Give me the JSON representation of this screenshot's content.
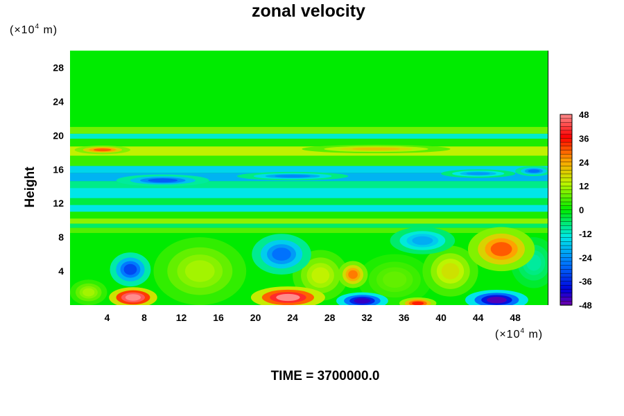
{
  "chart_data": {
    "type": "heatmap",
    "title": "zonal velocity",
    "ylabel": "Height",
    "x_unit": "(×10",
    "x_unit_exp": "4",
    "x_unit_tail": " m)",
    "y_unit": "(×10",
    "y_unit_exp": "4",
    "y_unit_tail": " m)",
    "xlim": [
      0,
      51.5
    ],
    "ylim": [
      0,
      30
    ],
    "xticks": [
      "4",
      "8",
      "12",
      "16",
      "20",
      "24",
      "28",
      "32",
      "36",
      "40",
      "44",
      "48"
    ],
    "xtick_values": [
      4,
      8,
      12,
      16,
      20,
      24,
      28,
      32,
      36,
      40,
      44,
      48
    ],
    "yticks": [
      "4",
      "8",
      "12",
      "16",
      "20",
      "24",
      "28"
    ],
    "ytick_values": [
      4,
      8,
      12,
      16,
      20,
      24,
      28
    ],
    "colorbar": {
      "range": [
        -48,
        48
      ],
      "tick_labels": [
        "48",
        "36",
        "24",
        "12",
        "0",
        "-12",
        "-24",
        "-36",
        "-48"
      ],
      "tick_values": [
        48,
        36,
        24,
        12,
        0,
        -12,
        -24,
        -36,
        -48
      ]
    },
    "features": [
      {
        "x": 6.8,
        "y": 0.9,
        "value": 46
      },
      {
        "x": 6.5,
        "y": 4.2,
        "value": -28
      },
      {
        "x": 23.5,
        "y": 0.8,
        "value": 42
      },
      {
        "x": 22.5,
        "y": 6.2,
        "value": -24
      },
      {
        "x": 31.5,
        "y": 0.6,
        "value": -38
      },
      {
        "x": 30.5,
        "y": 3.6,
        "value": 24
      },
      {
        "x": 37.5,
        "y": 0.3,
        "value": 30
      },
      {
        "x": 46.0,
        "y": 0.6,
        "value": -40
      },
      {
        "x": 46.5,
        "y": 6.5,
        "value": 26
      },
      {
        "x": 38.0,
        "y": 7.5,
        "value": -18
      },
      {
        "x": 3.5,
        "y": 18.3,
        "value": 26
      },
      {
        "x": 10.0,
        "y": 14.7,
        "value": -26
      }
    ]
  },
  "footer": {
    "time_label": "TIME = 3700000.0"
  }
}
